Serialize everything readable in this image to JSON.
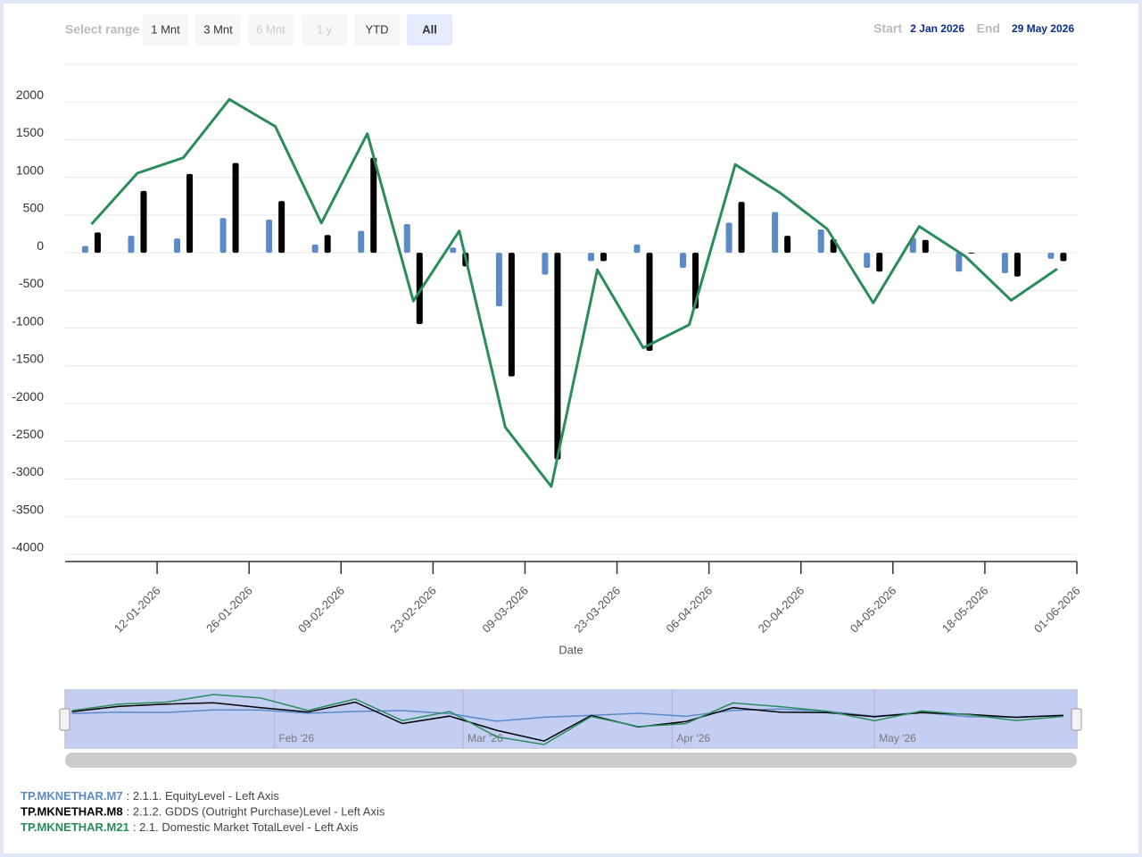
{
  "chart_data": {
    "type": "bar",
    "range_selector": {
      "label": "Select range",
      "buttons": [
        "1 Mnt",
        "3 Mnt",
        "6 Mnt",
        "1 y",
        "YTD",
        "All"
      ],
      "disabled": [
        2,
        3
      ],
      "selected": 5
    },
    "date_range": {
      "start_label": "Start",
      "start": "2 Jan 2026",
      "end_label": "End",
      "end": "29 May 2026"
    },
    "x_label": "Date",
    "x": [
      "02-01-2026",
      "09-01-2026",
      "16-01-2026",
      "23-01-2026",
      "30-01-2026",
      "06-02-2026",
      "13-02-2026",
      "20-02-2026",
      "27-02-2026",
      "06-03-2026",
      "13-03-2026",
      "20-03-2026",
      "27-03-2026",
      "03-04-2026",
      "10-04-2026",
      "17-04-2026",
      "24-04-2026",
      "01-05-2026",
      "08-05-2026",
      "15-05-2026",
      "22-05-2026",
      "29-05-2026"
    ],
    "xlim": [
      "29-12-2025",
      "01-06-2026"
    ],
    "xticks": [
      "12-01-2026",
      "26-01-2026",
      "09-02-2026",
      "23-02-2026",
      "09-03-2026",
      "23-03-2026",
      "06-04-2026",
      "20-04-2026",
      "04-05-2026",
      "18-05-2026",
      "01-06-2026"
    ],
    "ylim": [
      -4000,
      2500
    ],
    "yticks": [
      -4000,
      -3500,
      -3000,
      -2500,
      -2000,
      -1500,
      -1000,
      -500,
      0,
      500,
      1000,
      1500,
      2000
    ],
    "grid": true,
    "series": [
      {
        "name": "TP.MKNETHAR.M7",
        "description": ": 2.1.1. EquityLevel - Left Axis",
        "type": "bar",
        "color": "#5b8ac9",
        "values": [
          90,
          225,
          190,
          460,
          440,
          110,
          290,
          380,
          70,
          -710,
          -290,
          -110,
          110,
          -200,
          400,
          540,
          310,
          -200,
          200,
          -250,
          -270,
          -80
        ]
      },
      {
        "name": "TP.MKNETHAR.M8",
        "description": ": 2.1.2. GDDS (Outright Purchase)Level - Left Axis",
        "type": "bar",
        "color": "#000000",
        "values": [
          270,
          820,
          1045,
          1190,
          685,
          235,
          1260,
          -945,
          -180,
          -1640,
          -2740,
          -110,
          -1300,
          -740,
          675,
          225,
          180,
          -250,
          170,
          -10,
          -315,
          -110
        ]
      },
      {
        "name": "TP.MKNETHAR.M21",
        "description": ": 2.1. Domestic Market TotalLevel - Left Axis",
        "type": "line",
        "color": "#2a8c5a",
        "values": [
          380,
          1055,
          1260,
          2035,
          1675,
          395,
          1580,
          -640,
          290,
          -2315,
          -3100,
          -225,
          -1260,
          -955,
          1170,
          785,
          315,
          -665,
          350,
          -45,
          -630,
          -215
        ]
      }
    ],
    "navigator": {
      "xlim": [
        "01-01-2026",
        "31-05-2026"
      ],
      "ticks": [
        {
          "value": "01-02-2026",
          "label": "Feb '26"
        },
        {
          "value": "01-03-2026",
          "label": "Mar '26"
        },
        {
          "value": "01-04-2026",
          "label": "Apr '26"
        },
        {
          "value": "01-05-2026",
          "label": "May '26"
        }
      ]
    }
  }
}
